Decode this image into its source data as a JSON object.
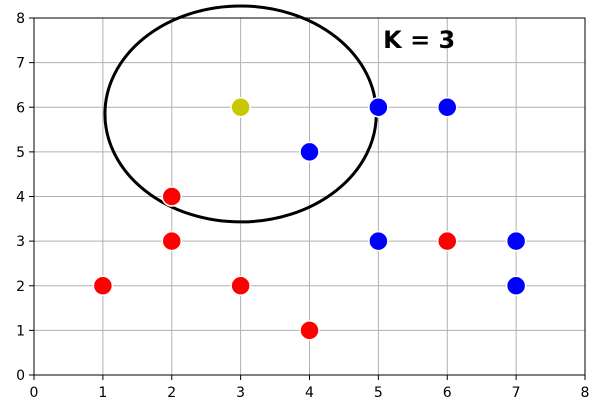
{
  "chart_data": {
    "type": "scatter",
    "title": "",
    "xlabel": "",
    "ylabel": "",
    "xlim": [
      0,
      8
    ],
    "ylim": [
      0,
      8
    ],
    "xticks": [
      "0",
      "1",
      "2",
      "3",
      "4",
      "5",
      "6",
      "7",
      "8"
    ],
    "yticks": [
      "0",
      "1",
      "2",
      "3",
      "4",
      "5",
      "6",
      "7",
      "8"
    ],
    "grid": true,
    "series": [
      {
        "color": "#ff0000",
        "points": [
          [
            1,
            2
          ],
          [
            2,
            3
          ],
          [
            2,
            4
          ],
          [
            3,
            2
          ],
          [
            4,
            1
          ],
          [
            6,
            3
          ]
        ]
      },
      {
        "color": "#0000ff",
        "points": [
          [
            4,
            5
          ],
          [
            5,
            6
          ],
          [
            6,
            6
          ],
          [
            5,
            3
          ],
          [
            7,
            3
          ],
          [
            7,
            2
          ]
        ]
      },
      {
        "color": "#c8c800",
        "points": [
          [
            3,
            6
          ]
        ]
      }
    ],
    "annotation": {
      "text": "K = 3",
      "x": 5.2,
      "y": 7.3
    },
    "circle": {
      "cx": 3,
      "cy": 5.85,
      "rx": 1.97,
      "ry": 2.42,
      "color": "#000000"
    }
  }
}
